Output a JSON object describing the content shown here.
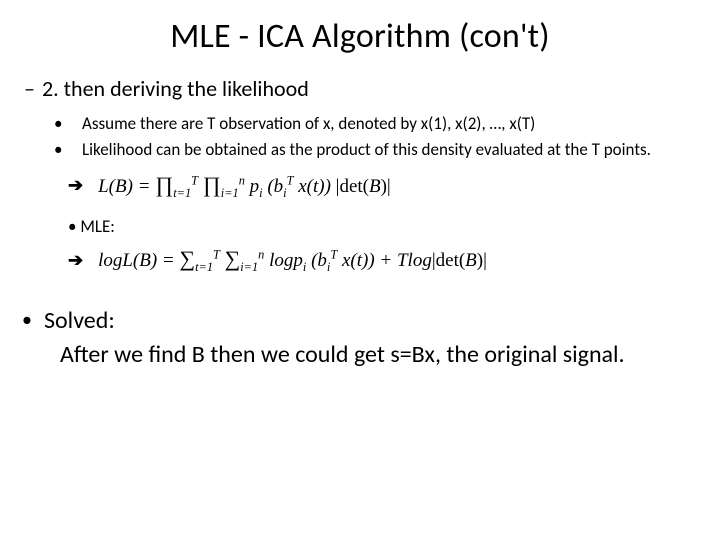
{
  "title": "MLE - ICA Algorithm (con't)",
  "step": {
    "dash": "–",
    "label": "2. then deriving the likelihood"
  },
  "assumptions": {
    "bullet": "•",
    "a1": "Assume there are T observation of x, denoted by x(1), x(2), …, x(T)",
    "a2": "Likelihood can be obtained as the product of this density evaluated at the T points."
  },
  "arrow": "➔",
  "formula1_html": "L(B) = <span class='bigop'>∏</span><sub>t=1</sub><sup>T</sup> <span class='bigop'>∏</span><sub>i=1</sub><sup>n</sup> p<sub>i</sub> (b<sub>i</sub><sup>T</sup> x(t)) <span class='up'>|det(</span>B<span class='up'>)|</span>",
  "mle_label": "MLE:",
  "formula2_html": "logL(B) = <span class='bigop'>∑</span><sub>t=1</sub><sup>T</sup> <span class='bigop'>∑</span><sub>i=1</sub><sup>n</sup> logp<sub>i</sub> (b<sub>i</sub><sup>T</sup> x(t)) + Tlog<span class='up'>|det(</span>B<span class='up'>)|</span>",
  "solved": {
    "bullet": "•",
    "head": "Solved:",
    "body_indent": "       ",
    "body": "After we find B then we could get s=Bx, the original signal."
  },
  "style": {
    "bg": "#ffffff",
    "text": "#000000",
    "title_fontsize": 34,
    "body_fontsize": 24,
    "sub_fontsize": 17,
    "formula_font": "Cambria Math"
  }
}
